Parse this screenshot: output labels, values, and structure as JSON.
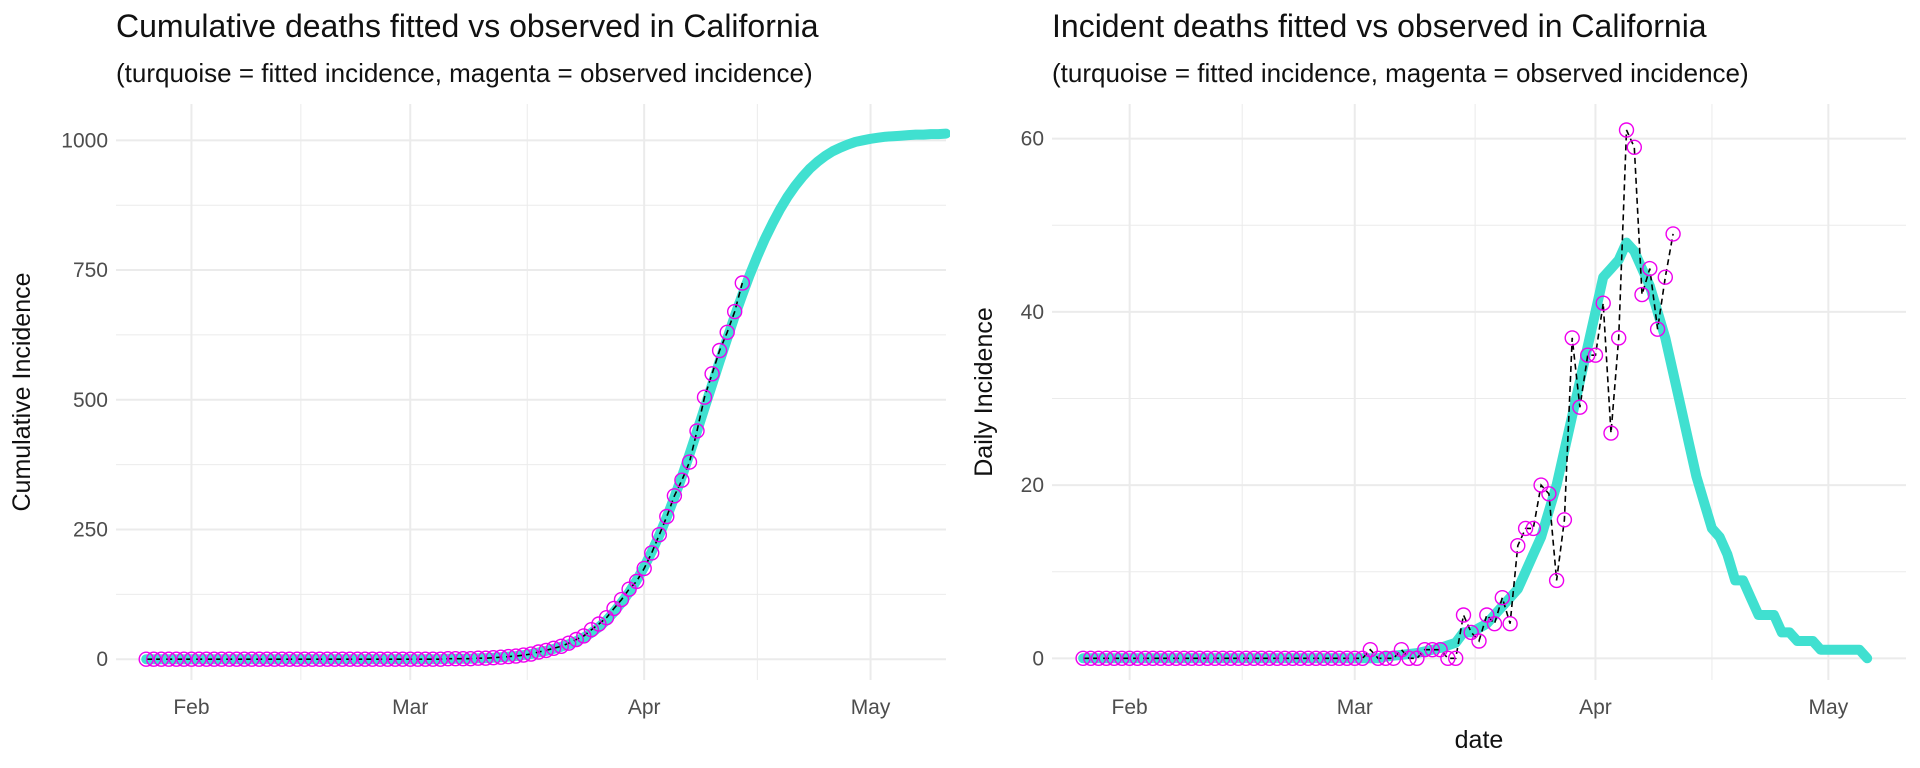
{
  "colors": {
    "fitted": "#40E0D0",
    "observed": "#EE00EE",
    "grid": "#EBEBEB",
    "axis_text": "#4D4D4D"
  },
  "chart_data": [
    {
      "type": "line",
      "title": "Cumulative deaths fitted vs observed in California",
      "subtitle": "(turquoise = fitted incidence, magenta = observed incidence)",
      "xlabel": "",
      "ylabel": "Cumulative Incidence",
      "xlim": [
        "2020-01-22",
        "2020-05-11"
      ],
      "ylim": [
        -40,
        1070
      ],
      "x_ticks": [
        "2020-02-01",
        "2020-03-01",
        "2020-04-01",
        "2020-05-01"
      ],
      "x_tick_labels": [
        "Feb",
        "Mar",
        "Apr",
        "May"
      ],
      "y_ticks": [
        0,
        250,
        500,
        750,
        1000
      ],
      "y_tick_labels": [
        "0",
        "250",
        "500",
        "750",
        "1000"
      ],
      "grid": true,
      "series": [
        {
          "kind": "fitted_line",
          "x_start": "2020-01-26",
          "values": [
            0,
            0,
            0,
            0,
            0,
            0,
            0,
            0,
            0,
            0,
            0,
            0,
            0,
            0,
            0,
            0,
            0,
            0,
            0,
            0,
            0,
            0,
            0,
            0,
            0,
            0,
            0,
            0,
            0,
            0,
            0,
            0,
            0,
            0,
            0,
            0,
            0,
            0,
            0,
            0,
            1,
            1,
            1,
            1,
            2,
            2,
            3,
            4,
            5,
            6,
            8,
            10,
            13,
            16,
            20,
            24,
            29,
            35,
            42,
            51,
            62,
            75,
            91,
            109,
            129,
            152,
            178,
            207,
            239,
            274,
            312,
            352,
            395,
            439,
            484,
            529,
            574,
            618,
            661,
            702,
            741,
            777,
            810,
            840,
            867,
            891,
            912,
            930,
            946,
            959,
            970,
            979,
            986,
            992,
            997,
            1000,
            1003,
            1005,
            1007,
            1008,
            1009,
            1010,
            1011,
            1011,
            1012,
            1012,
            1013
          ]
        },
        {
          "kind": "observed_points",
          "x_start": "2020-01-26",
          "values": [
            0,
            0,
            0,
            0,
            0,
            0,
            0,
            0,
            0,
            0,
            0,
            0,
            0,
            0,
            0,
            0,
            0,
            0,
            0,
            0,
            0,
            0,
            0,
            0,
            0,
            0,
            0,
            0,
            0,
            0,
            0,
            0,
            0,
            0,
            0,
            0,
            0,
            0,
            0,
            0,
            1,
            1,
            1,
            1,
            2,
            2,
            3,
            4,
            5,
            6,
            8,
            10,
            14,
            17,
            21,
            25,
            31,
            38,
            45,
            57,
            68,
            80,
            98,
            115,
            135,
            150,
            175,
            205,
            240,
            275,
            315,
            345,
            380,
            440,
            505,
            550,
            595,
            630,
            670,
            725
          ]
        }
      ]
    },
    {
      "type": "line",
      "title": "Incident deaths fitted vs observed in California",
      "subtitle": "(turquoise = fitted incidence, magenta = observed incidence)",
      "xlabel": "date",
      "ylabel": "Daily Incidence",
      "xlim": [
        "2020-01-22",
        "2020-05-11"
      ],
      "ylim": [
        -2.5,
        64
      ],
      "x_ticks": [
        "2020-02-01",
        "2020-03-01",
        "2020-04-01",
        "2020-05-01"
      ],
      "x_tick_labels": [
        "Feb",
        "Mar",
        "Apr",
        "May"
      ],
      "y_ticks": [
        0,
        20,
        40,
        60
      ],
      "y_tick_labels": [
        "0",
        "20",
        "40",
        "60"
      ],
      "grid": true,
      "series": [
        {
          "kind": "fitted_line",
          "x_start": "2020-01-26",
          "values": [
            0,
            0,
            0,
            0,
            0,
            0,
            0,
            0,
            0,
            0,
            0,
            0,
            0,
            0,
            0,
            0,
            0,
            0,
            0,
            0,
            0,
            0,
            0,
            0,
            0,
            0,
            0,
            0,
            0,
            0,
            0,
            0,
            0,
            0,
            0,
            0,
            0,
            0,
            0,
            0.2,
            0.3,
            0.4,
            0.5,
            0.6,
            0.8,
            1,
            1.2,
            1.5,
            1.8,
            3,
            3,
            3.5,
            4,
            5,
            6,
            7,
            8,
            10,
            12,
            14,
            17,
            20,
            24,
            28,
            32,
            36,
            40,
            44,
            45,
            46,
            48,
            47,
            45,
            43,
            40,
            37,
            33,
            29,
            25,
            21,
            18,
            15,
            14,
            12,
            9,
            9,
            7,
            5,
            5,
            5,
            3,
            3,
            2,
            2,
            2,
            1,
            1,
            1,
            1,
            1,
            1,
            0
          ]
        },
        {
          "kind": "observed_points",
          "x_start": "2020-01-26",
          "values": [
            0,
            0,
            0,
            0,
            0,
            0,
            0,
            0,
            0,
            0,
            0,
            0,
            0,
            0,
            0,
            0,
            0,
            0,
            0,
            0,
            0,
            0,
            0,
            0,
            0,
            0,
            0,
            0,
            0,
            0,
            0,
            0,
            0,
            0,
            0,
            0,
            0,
            1,
            0,
            0,
            0,
            1,
            0,
            0,
            1,
            1,
            1,
            0,
            0,
            5,
            3,
            2,
            5,
            4,
            7,
            4,
            13,
            15,
            15,
            20,
            19,
            9,
            16,
            37,
            29,
            35,
            35,
            41,
            26,
            37,
            61,
            59,
            42,
            45,
            38,
            44,
            49
          ]
        }
      ]
    }
  ]
}
